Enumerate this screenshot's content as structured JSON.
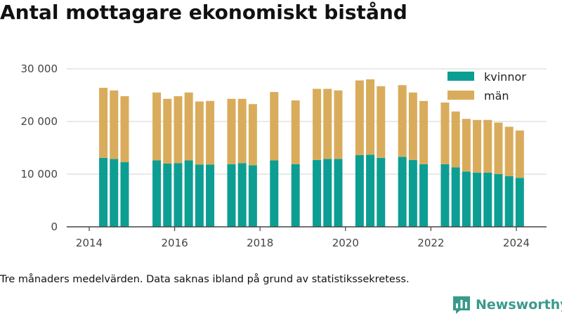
{
  "title": "Antal mottagare ekonomiskt bistånd",
  "note": "Tre månaders medelvärden. Data saknas ibland på grund av statistikssekretess.",
  "brand": {
    "name": "Newsworthy",
    "logo_icon": "newsworthy-chart-logo-icon"
  },
  "colors": {
    "kvinnor": "#0d9e93",
    "man": "#d9ac5c",
    "grid": "#e2e2e2",
    "axis": "#444444"
  },
  "chart_data": {
    "type": "bar",
    "stacked": true,
    "title": "Antal mottagare ekonomiskt bistånd",
    "xlabel": "",
    "ylabel": "",
    "ylim": [
      0,
      30000
    ],
    "xlim": [
      2013.75,
      2024.7
    ],
    "grid": true,
    "legend_position": "top-right",
    "y_ticks": [
      {
        "value": 0,
        "label": "0"
      },
      {
        "value": 10000,
        "label": "10 000"
      },
      {
        "value": 20000,
        "label": "20 000"
      },
      {
        "value": 30000,
        "label": "30 000"
      }
    ],
    "x_ticks": [
      {
        "value": 2014,
        "label": "2014"
      },
      {
        "value": 2016,
        "label": "2016"
      },
      {
        "value": 2018,
        "label": "2018"
      },
      {
        "value": 2020,
        "label": "2020"
      },
      {
        "value": 2022,
        "label": "2022"
      },
      {
        "value": 2024,
        "label": "2024"
      }
    ],
    "x": [
      2014.33,
      2014.58,
      2014.83,
      2015.58,
      2015.83,
      2016.08,
      2016.33,
      2016.58,
      2016.83,
      2017.33,
      2017.58,
      2017.83,
      2018.33,
      2018.83,
      2019.33,
      2019.58,
      2019.83,
      2020.33,
      2020.58,
      2020.83,
      2021.33,
      2021.58,
      2021.83,
      2022.33,
      2022.58,
      2022.83,
      2023.08,
      2023.33,
      2023.58,
      2023.83,
      2024.08
    ],
    "series": [
      {
        "name": "kvinnor",
        "values": [
          13100,
          12900,
          12300,
          12600,
          12000,
          12100,
          12600,
          11800,
          11800,
          11900,
          12100,
          11700,
          12600,
          11900,
          12700,
          12900,
          12900,
          13600,
          13700,
          13100,
          13300,
          12700,
          11900,
          11900,
          11300,
          10500,
          10300,
          10300,
          10000,
          9600,
          9300
        ]
      },
      {
        "name": "män",
        "values": [
          13300,
          13000,
          12500,
          12900,
          12300,
          12700,
          12900,
          12000,
          12100,
          12400,
          12200,
          11600,
          13000,
          12100,
          13500,
          13300,
          13000,
          14200,
          14300,
          13600,
          13600,
          12800,
          12000,
          11700,
          10600,
          10000,
          10000,
          10000,
          9800,
          9400,
          9000
        ]
      }
    ]
  }
}
